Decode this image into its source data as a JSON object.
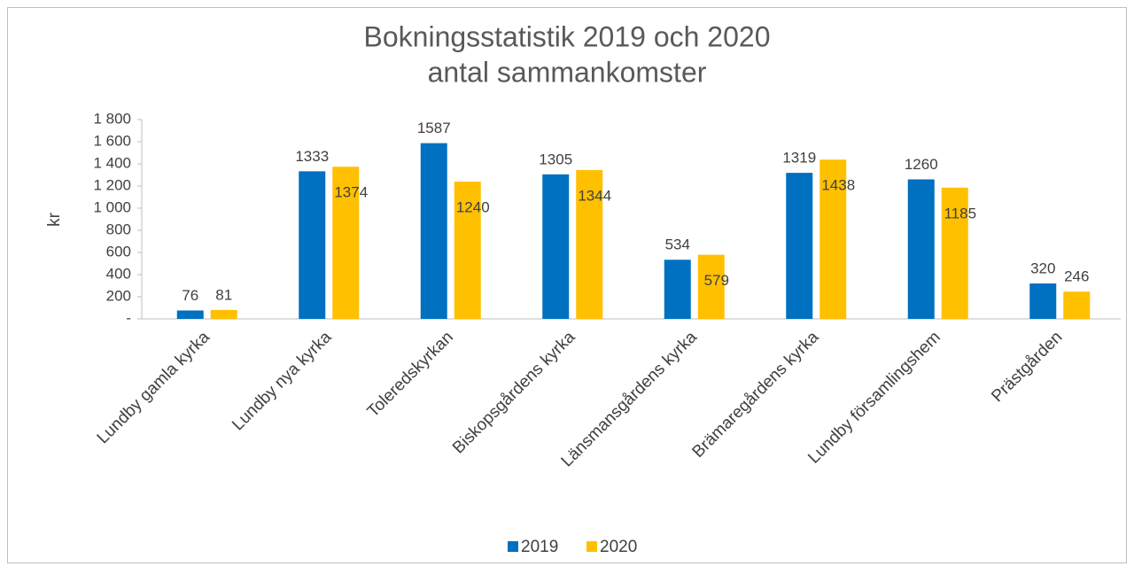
{
  "chart_data": {
    "type": "bar",
    "title": "Bokningsstatistik 2019 och 2020",
    "subtitle": "antal sammankomster",
    "y_label": "kr",
    "categories": [
      "Lundby gamla kyrka",
      "Lundby nya kyrka",
      "Toleredskyrkan",
      "Biskopsgårdens kyrka",
      "Länsmansgårdens kyrka",
      "Brämaregårdens kyrka",
      "Lundby församlingshem",
      "Prästgården"
    ],
    "series": [
      {
        "name": "2019",
        "color": "#0070c0",
        "values": [
          76,
          1333,
          1587,
          1305,
          534,
          1319,
          1260,
          320
        ]
      },
      {
        "name": "2020",
        "color": "#ffc000",
        "values": [
          81,
          1374,
          1240,
          1344,
          579,
          1438,
          1185,
          246
        ]
      }
    ],
    "ylim": [
      0,
      1800
    ],
    "yticks": [
      {
        "value": 0,
        "label": "-"
      },
      200,
      400,
      600,
      800,
      {
        "value": 1000,
        "label": "1 000"
      },
      {
        "value": 1200,
        "label": "1 200"
      },
      {
        "value": 1400,
        "label": "1 400"
      },
      {
        "value": 1600,
        "label": "1 600"
      },
      {
        "value": 1800,
        "label": "1 800"
      }
    ],
    "legend": "bottom"
  }
}
